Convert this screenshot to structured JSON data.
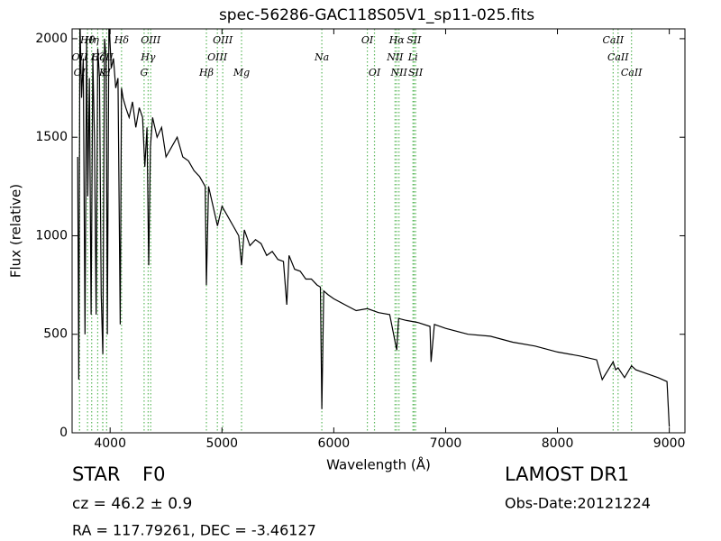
{
  "chart_data": {
    "type": "line",
    "title": "spec-56286-GAC118S05V1_sp11-025.fits",
    "x_label": "Wavelength (Å)",
    "y_label": "Flux (relative)",
    "color": "#000000",
    "line_color": "#5cb85c",
    "xlim": [
      3660,
      9140
    ],
    "ylim": [
      0,
      2050
    ],
    "xticks": [
      4000,
      5000,
      6000,
      7000,
      8000,
      9000
    ],
    "yticks": [
      0,
      500,
      1000,
      1500,
      2000
    ],
    "x": [
      3710,
      3720,
      3730,
      3745,
      3760,
      3775,
      3790,
      3800,
      3815,
      3830,
      3845,
      3860,
      3875,
      3890,
      3905,
      3920,
      3935,
      3950,
      3965,
      3975,
      3990,
      4010,
      4030,
      4050,
      4070,
      4090,
      4102,
      4115,
      4140,
      4170,
      4200,
      4230,
      4260,
      4290,
      4310,
      4330,
      4345,
      4360,
      4380,
      4420,
      4460,
      4500,
      4550,
      4600,
      4650,
      4700,
      4750,
      4800,
      4850,
      4861,
      4880,
      4920,
      4960,
      5000,
      5050,
      5100,
      5150,
      5175,
      5200,
      5250,
      5300,
      5350,
      5400,
      5450,
      5500,
      5550,
      5580,
      5600,
      5650,
      5700,
      5750,
      5800,
      5850,
      5880,
      5893,
      5910,
      5950,
      6000,
      6100,
      6200,
      6300,
      6400,
      6500,
      6563,
      6580,
      6650,
      6750,
      6860,
      6870,
      6900,
      7000,
      7200,
      7400,
      7600,
      7800,
      8000,
      8200,
      8350,
      8400,
      8498,
      8520,
      8542,
      8600,
      8662,
      8700,
      8800,
      8900,
      8980,
      9000
    ],
    "values": [
      1400,
      270,
      2100,
      1700,
      1900,
      500,
      2000,
      1200,
      1800,
      600,
      1900,
      1500,
      600,
      1950,
      1800,
      700,
      400,
      2000,
      1900,
      500,
      2100,
      1850,
      1900,
      1750,
      1800,
      550,
      1750,
      1700,
      1650,
      1600,
      1680,
      1550,
      1650,
      1600,
      1350,
      1550,
      850,
      1450,
      1600,
      1500,
      1550,
      1400,
      1450,
      1500,
      1400,
      1380,
      1330,
      1300,
      1250,
      750,
      1250,
      1150,
      1050,
      1150,
      1100,
      1050,
      1000,
      850,
      1030,
      950,
      980,
      960,
      900,
      920,
      880,
      870,
      650,
      900,
      830,
      820,
      780,
      780,
      750,
      740,
      120,
      720,
      700,
      680,
      650,
      620,
      630,
      610,
      600,
      420,
      580,
      570,
      560,
      540,
      360,
      550,
      530,
      500,
      490,
      460,
      440,
      410,
      390,
      370,
      270,
      360,
      320,
      330,
      280,
      340,
      320,
      300,
      280,
      260,
      30
    ],
    "line_labels": [
      [
        {
          "label": "Hθ",
          "x": 3798
        },
        {
          "label": "Hη",
          "x": 3835
        },
        {
          "label": "Hδ",
          "x": 4102
        },
        {
          "label": "OIII",
          "x": 4363
        },
        {
          "label": "OIII",
          "x": 5007
        },
        {
          "label": "OI",
          "x": 6300
        },
        {
          "label": "Hα",
          "x": 6563
        },
        {
          "label": "SII",
          "x": 6717
        },
        {
          "label": "CaII",
          "x": 8498
        }
      ],
      [
        {
          "label": "OII",
          "x": 3727
        },
        {
          "label": "Hζ",
          "x": 3889
        },
        {
          "label": "CaII",
          "x": 3934
        },
        {
          "label": "Hγ",
          "x": 4340
        },
        {
          "label": "OIII",
          "x": 4959
        },
        {
          "label": "Na",
          "x": 5893
        },
        {
          "label": "NII",
          "x": 6548
        },
        {
          "label": "Li",
          "x": 6708
        },
        {
          "label": "CaII",
          "x": 8542
        }
      ],
      [
        {
          "label": "OI",
          "x": 3727
        },
        {
          "label": "K",
          "x": 3934
        },
        {
          "label": "H",
          "x": 3969
        },
        {
          "label": "G",
          "x": 4304
        },
        {
          "label": "Hβ",
          "x": 4861
        },
        {
          "label": "Mg",
          "x": 5175
        },
        {
          "label": "OI",
          "x": 6364
        },
        {
          "label": "NII",
          "x": 6583
        },
        {
          "label": "SII",
          "x": 6731
        },
        {
          "label": "CaII",
          "x": 8662
        }
      ]
    ]
  },
  "footer": {
    "class": "STAR",
    "subclass": "F0",
    "survey": "LAMOST DR1",
    "cz": "cz = 46.2 ± 0.9",
    "obs_date": "Obs-Date:20121224",
    "coords": "RA = 117.79261, DEC = -3.46127"
  }
}
